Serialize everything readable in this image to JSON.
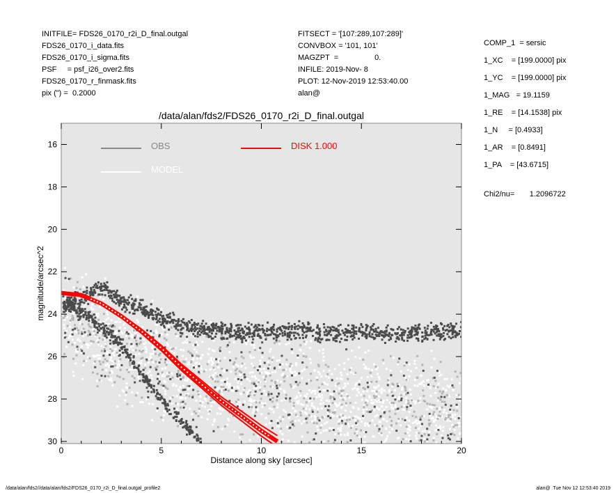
{
  "header_left": [
    "INITFILE= FDS26_0170_r2i_D_final.outgal",
    "FDS26_0170_i_data.fits",
    "FDS26_0170_i_sigma.fits",
    "PSF     = psf_i26_over2.fits",
    "FDS26_0170_r_finmask.fits",
    "pix (\") =  0.2000"
  ],
  "header_mid": [
    "FITSECT = '[107:289,107:289]'",
    "CONVBOX = '101, 101'",
    "MAGZPT  =                 0.",
    "INFILE: 2019-Nov- 8",
    "PLOT: 12-Nov-2019 12:53:40.00",
    "alan@"
  ],
  "params": [
    "COMP_1  = sersic",
    "1_XC    = [199.0000] pix",
    "1_YC    = [199.0000] pix",
    "1_MAG   = 19.1159",
    "1_RE    = [14.1538] pix",
    "1_N     = [0.4933]",
    "1_AR    = [0.8491]",
    "1_PA    = [43.6715]"
  ],
  "chi2": "Chi2/nu=       1.2096722",
  "plot_title": "/data/alan/fds2/FDS26_0170_r2i_D_final.outgal",
  "footer_left": "/data/alan/fds2//data/alan/fds2/FDS26_0170_r2i_D_final.outgal_profile2",
  "footer_right": "alan@  Tue Nov 12 12:53:40 2019",
  "chart_data": {
    "type": "scatter",
    "title": "/data/alan/fds2/FDS26_0170_r2i_D_final.outgal",
    "xlabel": "Distance along sky [arcsec]",
    "ylabel": "magnitude/arcsec^2",
    "xlim": [
      0,
      20
    ],
    "ylim": [
      30.1,
      15.0
    ],
    "y_inverted": true,
    "xticks": [
      0,
      5,
      10,
      15,
      20
    ],
    "yticks": [
      16,
      18,
      20,
      22,
      24,
      26,
      28,
      30
    ],
    "background": "#e6e6e6",
    "legend": [
      {
        "label": "OBS",
        "color": "#888888"
      },
      {
        "label": "MODEL",
        "color": "#ffffff"
      },
      {
        "label": "DISK  1.000",
        "color": "#ff0000"
      }
    ],
    "series": [
      {
        "name": "OBS",
        "color": "#555555",
        "x": [
          0.1,
          0.6,
          1.1,
          1.6,
          2.1,
          2.6,
          3.1,
          3.6,
          4.1,
          4.6,
          5.1,
          6,
          7,
          8,
          9,
          10,
          11,
          12,
          13,
          14,
          15,
          16,
          17,
          18,
          19,
          20
        ],
        "y": [
          23.5,
          23.4,
          23.2,
          22.9,
          22.8,
          23.1,
          23.4,
          23.6,
          23.8,
          24.0,
          24.2,
          24.5,
          24.7,
          24.8,
          24.9,
          24.8,
          24.9,
          24.8,
          24.9,
          24.9,
          24.8,
          24.9,
          24.9,
          24.9,
          24.8,
          24.8
        ]
      },
      {
        "name": "OBS inner",
        "color": "#555555",
        "x": [
          0.1,
          0.5,
          1.0,
          1.5,
          2.0,
          2.5,
          3.0,
          3.5,
          4.0,
          4.5,
          5.0,
          5.5,
          6.0,
          6.5,
          7.0
        ],
        "y": [
          23.6,
          23.7,
          23.9,
          24.2,
          24.6,
          25.0,
          25.5,
          26.1,
          26.8,
          27.4,
          28.0,
          28.6,
          29.1,
          29.6,
          30.0
        ]
      },
      {
        "name": "MODEL",
        "color": "#ffffff",
        "x": [
          0.1,
          1,
          2,
          3,
          4,
          5,
          6,
          7,
          8,
          9,
          10,
          11,
          12,
          13,
          14,
          15,
          16,
          17,
          18,
          19,
          20
        ],
        "y": [
          24.2,
          24.6,
          25.1,
          25.6,
          26.0,
          26.4,
          26.7,
          27.0,
          27.2,
          27.4,
          27.6,
          27.8,
          27.9,
          28.1,
          28.2,
          28.3,
          28.4,
          28.5,
          28.6,
          28.7,
          28.8
        ]
      },
      {
        "name": "DISK  1.000",
        "color": "#ff0000",
        "x": [
          0,
          1,
          2,
          3,
          4,
          5,
          6,
          7,
          8,
          9,
          10,
          10.8
        ],
        "y": [
          23.0,
          23.1,
          23.5,
          24.1,
          24.8,
          25.6,
          26.5,
          27.3,
          28.1,
          28.8,
          29.5,
          30.0
        ]
      }
    ]
  }
}
